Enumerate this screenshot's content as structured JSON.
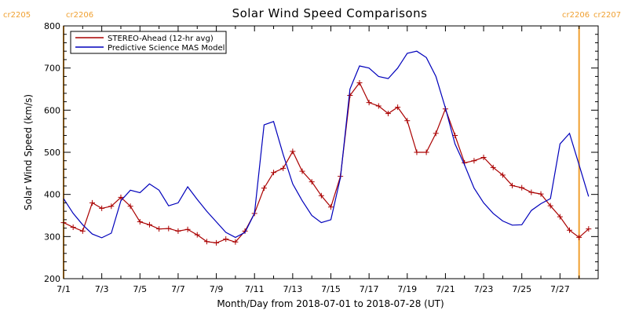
{
  "chart_data": {
    "type": "line",
    "title": "Solar Wind Speed Comparisons",
    "xlabel": "Month/Day from 2018-07-01 to 2018-07-28 (UT)",
    "ylabel": "Solar Wind Speed (km/s)",
    "xlim": [
      "2018-07-01",
      "2018-07-29"
    ],
    "ylim": [
      200,
      800
    ],
    "x_tick_labels": [
      "7/1",
      "7/3",
      "7/5",
      "7/7",
      "7/9",
      "7/11",
      "7/13",
      "7/15",
      "7/17",
      "7/19",
      "7/21",
      "7/23",
      "7/25",
      "7/27"
    ],
    "y_tick_labels": [
      "200",
      "300",
      "400",
      "500",
      "600",
      "700",
      "800"
    ],
    "grid": false,
    "legend_position": "top-left",
    "carrington_markers": [
      {
        "date": "2018-07-01",
        "left_label": "cr2205",
        "right_label": "cr2206",
        "color": "#f0a030"
      },
      {
        "date": "2018-07-28",
        "left_label": "cr2206",
        "right_label": "cr2207",
        "color": "#f0a030"
      }
    ],
    "series": [
      {
        "name": "STEREO-Ahead (12-hr avg)",
        "color": "#aa0000",
        "marker": "plus",
        "x": [
          "2018-07-01 00:00",
          "2018-07-01 12:00",
          "2018-07-02 00:00",
          "2018-07-02 12:00",
          "2018-07-03 00:00",
          "2018-07-03 12:00",
          "2018-07-04 00:00",
          "2018-07-04 12:00",
          "2018-07-05 00:00",
          "2018-07-05 12:00",
          "2018-07-06 00:00",
          "2018-07-06 12:00",
          "2018-07-07 00:00",
          "2018-07-07 12:00",
          "2018-07-08 00:00",
          "2018-07-08 12:00",
          "2018-07-09 00:00",
          "2018-07-09 12:00",
          "2018-07-10 00:00",
          "2018-07-10 12:00",
          "2018-07-11 00:00",
          "2018-07-11 12:00",
          "2018-07-12 00:00",
          "2018-07-12 12:00",
          "2018-07-13 00:00",
          "2018-07-13 12:00",
          "2018-07-14 00:00",
          "2018-07-14 12:00",
          "2018-07-15 00:00",
          "2018-07-15 12:00",
          "2018-07-16 00:00",
          "2018-07-16 12:00",
          "2018-07-17 00:00",
          "2018-07-17 12:00",
          "2018-07-18 00:00",
          "2018-07-18 12:00",
          "2018-07-19 00:00",
          "2018-07-19 12:00",
          "2018-07-20 00:00",
          "2018-07-20 12:00",
          "2018-07-21 00:00",
          "2018-07-21 12:00",
          "2018-07-22 00:00",
          "2018-07-22 12:00",
          "2018-07-23 00:00",
          "2018-07-23 12:00",
          "2018-07-24 00:00",
          "2018-07-24 12:00",
          "2018-07-25 00:00",
          "2018-07-25 12:00",
          "2018-07-26 00:00",
          "2018-07-26 12:00",
          "2018-07-27 00:00",
          "2018-07-27 12:00",
          "2018-07-28 00:00",
          "2018-07-28 12:00"
        ],
        "values": [
          333,
          322,
          313,
          380,
          367,
          372,
          393,
          372,
          335,
          328,
          318,
          319,
          313,
          317,
          304,
          288,
          285,
          294,
          287,
          313,
          355,
          415,
          452,
          462,
          502,
          455,
          430,
          397,
          370,
          443,
          635,
          665,
          618,
          610,
          592,
          607,
          575,
          500,
          500,
          545,
          603,
          540,
          475,
          480,
          488,
          464,
          446,
          421,
          416,
          405,
          401,
          373,
          347,
          315,
          298,
          318
        ]
      },
      {
        "name": "Predictive Science MAS Model",
        "color": "#0000bb",
        "marker": "none",
        "x": [
          "2018-07-01 00:00",
          "2018-07-01 12:00",
          "2018-07-02 00:00",
          "2018-07-02 12:00",
          "2018-07-03 00:00",
          "2018-07-03 12:00",
          "2018-07-04 00:00",
          "2018-07-04 12:00",
          "2018-07-05 00:00",
          "2018-07-05 12:00",
          "2018-07-06 00:00",
          "2018-07-06 12:00",
          "2018-07-07 00:00",
          "2018-07-07 12:00",
          "2018-07-08 00:00",
          "2018-07-08 12:00",
          "2018-07-09 00:00",
          "2018-07-09 12:00",
          "2018-07-10 00:00",
          "2018-07-10 12:00",
          "2018-07-11 00:00",
          "2018-07-11 12:00",
          "2018-07-12 00:00",
          "2018-07-12 12:00",
          "2018-07-13 00:00",
          "2018-07-13 12:00",
          "2018-07-14 00:00",
          "2018-07-14 12:00",
          "2018-07-15 00:00",
          "2018-07-15 12:00",
          "2018-07-16 00:00",
          "2018-07-16 12:00",
          "2018-07-17 00:00",
          "2018-07-17 12:00",
          "2018-07-18 00:00",
          "2018-07-18 12:00",
          "2018-07-19 00:00",
          "2018-07-19 12:00",
          "2018-07-20 00:00",
          "2018-07-20 12:00",
          "2018-07-21 00:00",
          "2018-07-21 12:00",
          "2018-07-22 00:00",
          "2018-07-22 12:00",
          "2018-07-23 00:00",
          "2018-07-23 12:00",
          "2018-07-24 00:00",
          "2018-07-24 12:00",
          "2018-07-25 00:00",
          "2018-07-25 12:00",
          "2018-07-26 00:00",
          "2018-07-26 12:00",
          "2018-07-27 00:00",
          "2018-07-27 12:00",
          "2018-07-28 00:00",
          "2018-07-28 12:00"
        ],
        "values": [
          390,
          355,
          328,
          306,
          297,
          308,
          385,
          410,
          404,
          425,
          410,
          373,
          380,
          418,
          388,
          360,
          335,
          310,
          298,
          310,
          355,
          565,
          573,
          495,
          425,
          385,
          350,
          333,
          340,
          440,
          650,
          705,
          700,
          680,
          675,
          700,
          735,
          740,
          725,
          680,
          605,
          520,
          470,
          415,
          380,
          355,
          337,
          327,
          328,
          362,
          378,
          390,
          520,
          545,
          470,
          395
        ]
      }
    ]
  }
}
